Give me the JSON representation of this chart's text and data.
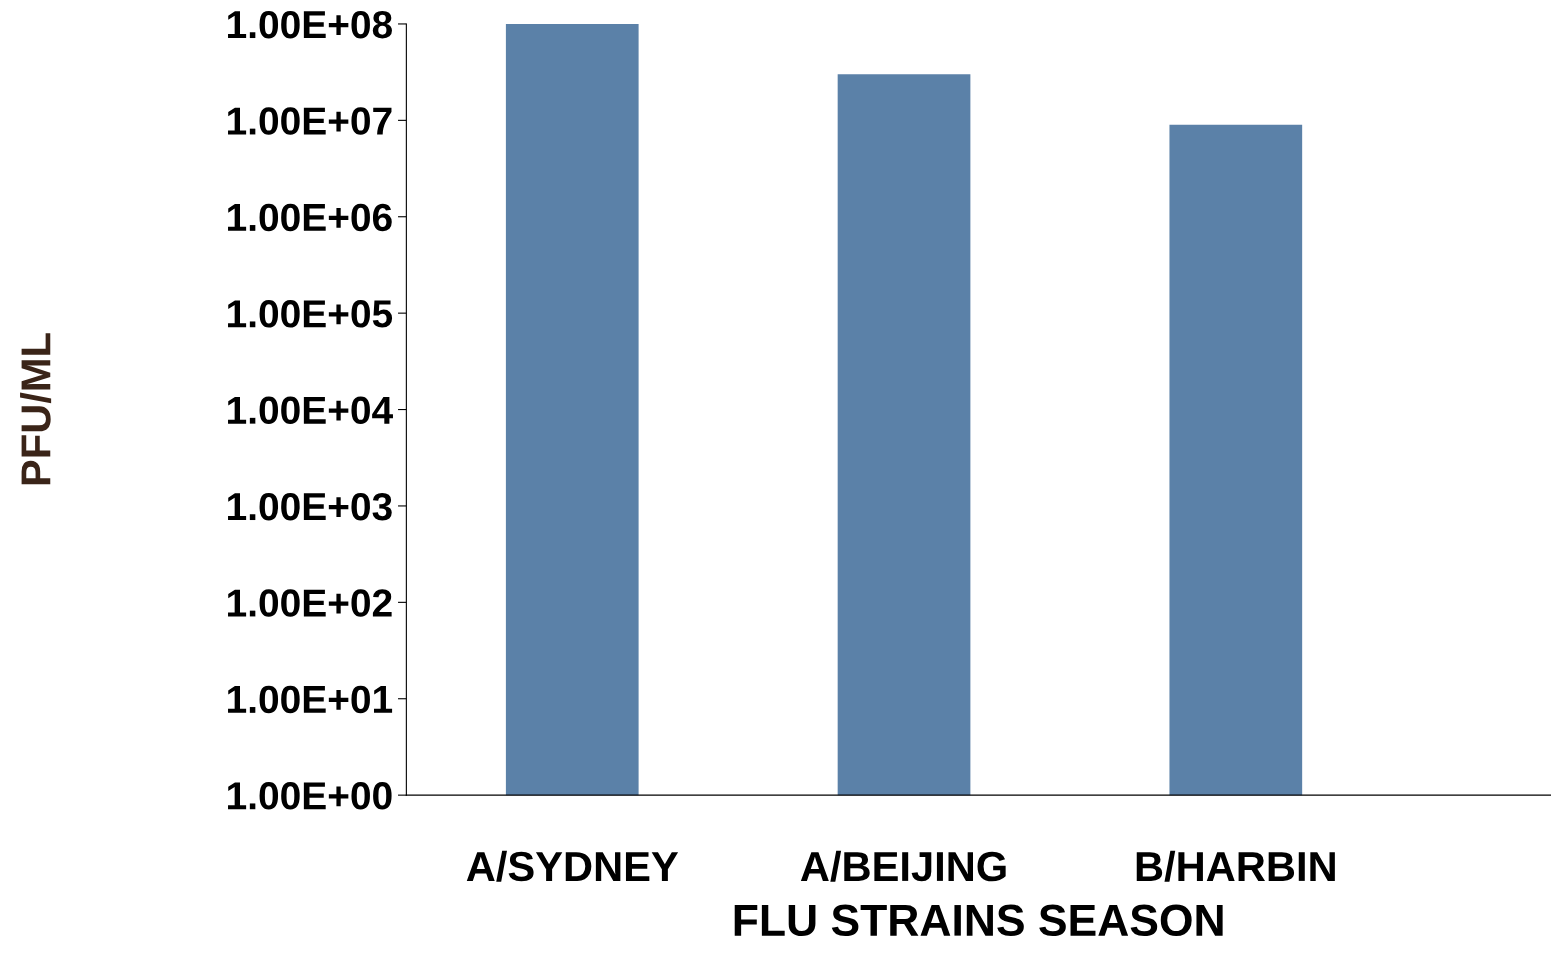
{
  "chart_data": {
    "type": "bar",
    "xlabel": "FLU STRAINS SEASON",
    "ylabel": "PFU/ML",
    "categories": [
      "A/SYDNEY",
      "A/BEIJING",
      "B/HARBIN"
    ],
    "values": [
      100000000,
      30000000,
      9000000
    ],
    "color": "#5b81a8",
    "log": "y",
    "ylim": [
      1,
      100000000
    ],
    "yticks": [
      {
        "value": 1,
        "label": "1.00E+00"
      },
      {
        "value": 10,
        "label": "1.00E+01"
      },
      {
        "value": 100,
        "label": "1.00E+02"
      },
      {
        "value": 1000,
        "label": "1.00E+03"
      },
      {
        "value": 10000,
        "label": "1.00E+04"
      },
      {
        "value": 100000,
        "label": "1.00E+05"
      },
      {
        "value": 1000000,
        "label": "1.00E+06"
      },
      {
        "value": 10000000,
        "label": "1.00E+07"
      },
      {
        "value": 100000000,
        "label": "1.00E+08"
      }
    ],
    "grid": false,
    "legend": false
  }
}
